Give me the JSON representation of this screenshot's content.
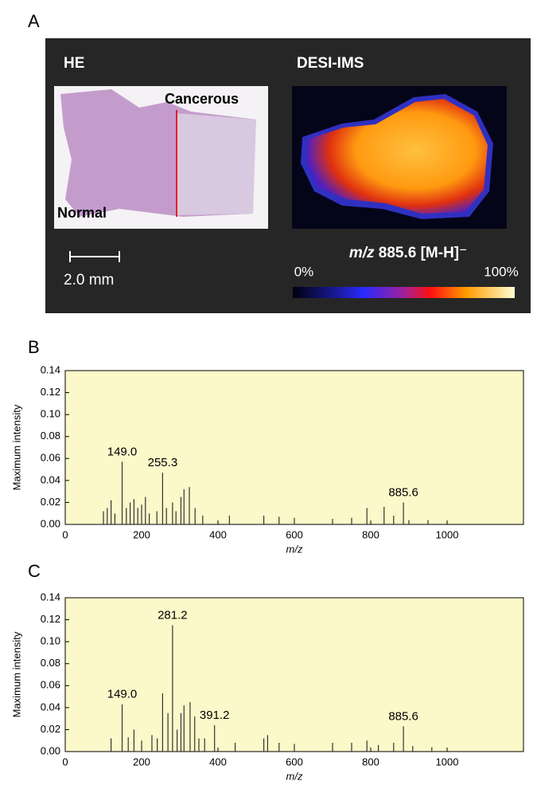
{
  "panel_labels": [
    "A",
    "B",
    "C"
  ],
  "panel_a": {
    "he_title": "HE",
    "desi_title": "DESI-IMS",
    "cancerous": "Cancerous",
    "normal": "Normal",
    "scale": "2.0 mm",
    "mz_italic": "m/z",
    "mz_rest": "885.6 [M-H]⁻",
    "scale_min": "0%",
    "scale_max": "100%"
  },
  "chart_data": [
    {
      "type": "spectrum",
      "x_label": "m/z",
      "y_label": "Maximum intensity",
      "color": "#333333",
      "background": "#fbf8c9",
      "x": [
        100,
        110,
        120,
        130,
        149,
        160,
        170,
        180,
        190,
        200,
        210,
        220,
        240,
        255,
        265,
        281,
        290,
        303,
        311,
        325,
        340,
        360,
        430,
        520,
        560,
        600,
        700,
        750,
        790,
        835,
        860,
        885.6,
        900,
        950
      ],
      "values": [
        0.012,
        0.015,
        0.022,
        0.01,
        0.057,
        0.015,
        0.02,
        0.023,
        0.015,
        0.018,
        0.025,
        0.01,
        0.012,
        0.047,
        0.015,
        0.02,
        0.012,
        0.025,
        0.032,
        0.034,
        0.015,
        0.008,
        0.008,
        0.008,
        0.007,
        0.006,
        0.005,
        0.006,
        0.015,
        0.016,
        0.008,
        0.02,
        0.004,
        0.004
      ],
      "annotations": [
        {
          "x": 149,
          "text": "149.0"
        },
        {
          "x": 255,
          "text": "255.3"
        },
        {
          "x": 885.6,
          "text": "885.6"
        }
      ],
      "xlim": [
        0,
        1200
      ],
      "xticks": [
        0,
        200,
        400,
        600,
        800,
        1000
      ],
      "ylim": [
        0,
        0.14
      ],
      "yticks": [
        {
          "value": 0,
          "label": "0.00"
        },
        {
          "value": 0.02,
          "label": "0.02"
        },
        {
          "value": 0.04,
          "label": "0.04"
        },
        {
          "value": 0.06,
          "label": "0.06"
        },
        {
          "value": 0.08,
          "label": "0.08"
        },
        {
          "value": 0.1,
          "label": "0.10"
        },
        {
          "value": 0.12,
          "label": "0.12"
        },
        {
          "value": 0.14,
          "label": "0.14"
        }
      ]
    },
    {
      "type": "spectrum",
      "x_label": "m/z",
      "y_label": "Maximum intensity",
      "color": "#333333",
      "background": "#fbf8c9",
      "x": [
        120,
        149,
        165,
        180,
        200,
        227,
        241,
        255,
        269,
        281,
        293,
        303,
        311,
        327,
        339,
        350,
        365,
        391,
        445,
        520,
        530,
        560,
        600,
        700,
        750,
        790,
        820,
        860,
        885.6,
        910,
        960
      ],
      "values": [
        0.012,
        0.043,
        0.013,
        0.02,
        0.01,
        0.015,
        0.012,
        0.053,
        0.035,
        0.115,
        0.02,
        0.035,
        0.042,
        0.045,
        0.032,
        0.012,
        0.012,
        0.024,
        0.008,
        0.012,
        0.015,
        0.008,
        0.007,
        0.008,
        0.008,
        0.01,
        0.006,
        0.008,
        0.023,
        0.005,
        0.004
      ],
      "annotations": [
        {
          "x": 149,
          "text": "149.0"
        },
        {
          "x": 281,
          "text": "281.2"
        },
        {
          "x": 391,
          "text": "391.2"
        },
        {
          "x": 885.6,
          "text": "885.6"
        }
      ],
      "xlim": [
        0,
        1200
      ],
      "xticks": [
        0,
        200,
        400,
        600,
        800,
        1000
      ],
      "ylim": [
        0,
        0.14
      ],
      "yticks": [
        {
          "value": 0,
          "label": "0.00"
        },
        {
          "value": 0.02,
          "label": "0.02"
        },
        {
          "value": 0.04,
          "label": "0.04"
        },
        {
          "value": 0.06,
          "label": "0.06"
        },
        {
          "value": 0.08,
          "label": "0.08"
        },
        {
          "value": 0.1,
          "label": "0.10"
        },
        {
          "value": 0.12,
          "label": "0.12"
        },
        {
          "value": 0.14,
          "label": "0.14"
        }
      ]
    }
  ]
}
